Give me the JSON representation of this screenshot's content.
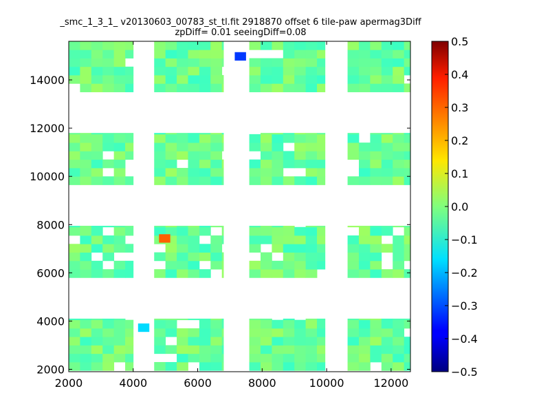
{
  "chart_data": {
    "type": "heatmap",
    "title_line1": "_smc_1_3_1_ v20130603_00783_st_tl.fit 2918870 offset 6 tile-paw apermag3Diff",
    "title_line2": "zpDiff= 0.01 seeingDiff=0.08",
    "xlabel": "",
    "ylabel": "",
    "xlim": [
      2000,
      12600
    ],
    "ylim": [
      1900,
      15600
    ],
    "x_ticks": [
      "2000",
      "4000",
      "6000",
      "8000",
      "10000",
      "12000"
    ],
    "y_ticks": [
      "2000",
      "4000",
      "6000",
      "8000",
      "10000",
      "12000",
      "14000"
    ],
    "colorbar": {
      "colormap": "jet",
      "range": [
        -0.5,
        0.5
      ],
      "ticks": [
        "0.5",
        "0.4",
        "0.3",
        "0.2",
        "0.1",
        "0.0",
        "−0.1",
        "−0.2",
        "−0.3",
        "−0.4",
        "−0.5"
      ]
    },
    "cell_size": 350,
    "default_value": -0.02,
    "groups_x": [
      [
        2000,
        4000
      ],
      [
        4650,
        6800
      ],
      [
        7600,
        9950
      ],
      [
        10650,
        12600
      ]
    ],
    "groups_y": [
      [
        1950,
        4100
      ],
      [
        5800,
        7950
      ],
      [
        9650,
        11800
      ],
      [
        13500,
        15600
      ]
    ],
    "outliers": [
      {
        "x": 7150,
        "y": 14800,
        "value": -0.32
      },
      {
        "x": 4800,
        "y": 7250,
        "value": 0.28
      },
      {
        "x": 4150,
        "y": 3550,
        "value": -0.16
      }
    ]
  }
}
